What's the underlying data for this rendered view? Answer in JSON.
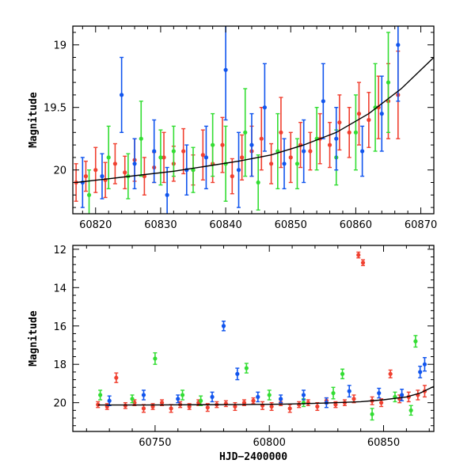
{
  "chart_data": [
    {
      "type": "scatter",
      "title": "",
      "xlabel": "",
      "ylabel": "Magnitude",
      "xlim": [
        60816.5,
        60872
      ],
      "ylim": [
        20.35,
        18.85
      ],
      "y_inverted": true,
      "xticks": [
        60820,
        60830,
        60840,
        60850,
        60860,
        60870
      ],
      "yticks": [
        19,
        19.5,
        20
      ],
      "grid": false,
      "legend": "none",
      "colors": {
        "red": "#f04030",
        "green": "#33dd33",
        "blue": "#1155ee",
        "fit": "#000000"
      },
      "series": [
        {
          "color": "red",
          "x": [
            60817,
            60818.5,
            60820,
            60821.5,
            60823,
            60824.5,
            60826,
            60827.5,
            60829,
            60830.5,
            60832,
            60833.5,
            60835,
            60836.5,
            60838,
            60839.5,
            60841,
            60842.5,
            60844,
            60845.5,
            60847,
            60848.5,
            60850,
            60851.5,
            60853,
            60854.5,
            60856,
            60857.5,
            60859,
            60860.5,
            60862,
            60863.5,
            60865,
            60866.5
          ],
          "y": [
            20.1,
            20.05,
            20.0,
            20.08,
            19.95,
            20.02,
            19.92,
            20.05,
            19.98,
            19.9,
            19.95,
            19.85,
            20.0,
            19.88,
            19.95,
            19.8,
            20.05,
            19.9,
            19.85,
            19.75,
            19.95,
            19.7,
            19.9,
            19.8,
            19.85,
            19.75,
            19.8,
            19.62,
            19.7,
            19.55,
            19.6,
            19.5,
            19.45,
            19.4
          ],
          "yerr": [
            0.15,
            0.12,
            0.18,
            0.14,
            0.16,
            0.13,
            0.17,
            0.15,
            0.12,
            0.2,
            0.14,
            0.18,
            0.12,
            0.2,
            0.15,
            0.22,
            0.14,
            0.18,
            0.2,
            0.25,
            0.16,
            0.28,
            0.2,
            0.18,
            0.15,
            0.2,
            0.18,
            0.22,
            0.2,
            0.25,
            0.22,
            0.25,
            0.3,
            0.35
          ]
        },
        {
          "color": "green",
          "x": [
            60819,
            60822,
            60825,
            60827,
            60830,
            60832,
            60835,
            60838,
            60840,
            60843,
            60845,
            60848,
            60851,
            60854,
            60857,
            60860,
            60863,
            60865
          ],
          "y": [
            20.2,
            19.9,
            20.05,
            19.75,
            19.9,
            19.85,
            20.0,
            19.8,
            19.95,
            19.7,
            20.1,
            19.85,
            19.95,
            19.75,
            19.9,
            19.7,
            19.5,
            19.3
          ],
          "yerr": [
            0.2,
            0.25,
            0.18,
            0.3,
            0.22,
            0.2,
            0.18,
            0.25,
            0.3,
            0.35,
            0.22,
            0.3,
            0.2,
            0.25,
            0.22,
            0.3,
            0.35,
            0.4
          ]
        },
        {
          "color": "blue",
          "x": [
            60818,
            60821,
            60824,
            60826,
            60829,
            60831,
            60834,
            60837,
            60840,
            60842,
            60844,
            60846,
            60849,
            60852,
            60855,
            60857,
            60861,
            60864,
            60866.5
          ],
          "y": [
            20.1,
            20.05,
            19.4,
            19.95,
            19.85,
            20.2,
            20.0,
            19.9,
            19.2,
            20.0,
            19.8,
            19.5,
            19.95,
            19.85,
            19.45,
            19.75,
            19.85,
            19.55,
            19.0
          ],
          "yerr": [
            0.2,
            0.18,
            0.3,
            0.2,
            0.25,
            0.22,
            0.2,
            0.25,
            0.4,
            0.3,
            0.25,
            0.35,
            0.2,
            0.25,
            0.3,
            0.25,
            0.2,
            0.3,
            0.45
          ]
        }
      ],
      "fit_curve": {
        "x": [
          60817,
          60822,
          60827,
          60832,
          60837,
          60842,
          60847,
          60852,
          60857,
          60862,
          60867,
          60872
        ],
        "y": [
          20.1,
          20.07,
          20.04,
          20.01,
          19.97,
          19.93,
          19.88,
          19.8,
          19.7,
          19.55,
          19.35,
          19.1
        ]
      }
    },
    {
      "type": "scatter",
      "title": "",
      "xlabel": "HJD−2400000",
      "ylabel": "Magnitude",
      "xlim": [
        60714,
        60872
      ],
      "ylim": [
        21.5,
        11.8
      ],
      "y_inverted": true,
      "xticks": [
        60750,
        60800,
        60850
      ],
      "yticks": [
        12,
        14,
        16,
        18,
        20
      ],
      "grid": false,
      "legend": "none",
      "colors": {
        "red": "#f04030",
        "green": "#33dd33",
        "blue": "#1155ee",
        "fit": "#000000"
      },
      "series": [
        {
          "color": "red",
          "x": [
            60725,
            60729,
            60733,
            60737,
            60741,
            60745,
            60749,
            60753,
            60757,
            60761,
            60765,
            60769,
            60773,
            60777,
            60781,
            60785,
            60789,
            60793,
            60797,
            60801,
            60805,
            60809,
            60813,
            60817,
            60821,
            60825,
            60829,
            60833,
            60837,
            60839,
            60841,
            60845,
            60849,
            60853,
            60857,
            60861,
            60865,
            60868
          ],
          "y": [
            20.1,
            20.2,
            18.7,
            20.15,
            20.0,
            20.3,
            20.2,
            20.0,
            20.3,
            20.1,
            20.2,
            20.0,
            20.25,
            20.1,
            20.05,
            20.2,
            20.0,
            19.9,
            20.15,
            20.2,
            20.0,
            20.3,
            20.1,
            20.0,
            20.2,
            19.9,
            20.1,
            20.0,
            19.8,
            12.3,
            12.7,
            19.9,
            20.0,
            18.5,
            19.8,
            19.7,
            19.6,
            19.4
          ],
          "yerr": [
            0.15,
            0.15,
            0.25,
            0.15,
            0.15,
            0.2,
            0.15,
            0.15,
            0.2,
            0.15,
            0.15,
            0.15,
            0.2,
            0.15,
            0.15,
            0.2,
            0.15,
            0.15,
            0.2,
            0.2,
            0.15,
            0.2,
            0.15,
            0.15,
            0.2,
            0.15,
            0.15,
            0.15,
            0.2,
            0.15,
            0.15,
            0.2,
            0.2,
            0.2,
            0.2,
            0.25,
            0.25,
            0.3
          ]
        },
        {
          "color": "green",
          "x": [
            60726,
            60740,
            60750,
            60762,
            60770,
            60790,
            60800,
            60815,
            60828,
            60832,
            60845,
            60855,
            60862,
            60864
          ],
          "y": [
            19.6,
            19.8,
            17.7,
            19.6,
            19.9,
            18.2,
            19.6,
            20.0,
            19.5,
            18.5,
            20.6,
            19.7,
            20.4,
            16.8
          ],
          "yerr": [
            0.25,
            0.2,
            0.3,
            0.25,
            0.25,
            0.25,
            0.25,
            0.2,
            0.3,
            0.25,
            0.3,
            0.25,
            0.25,
            0.3
          ]
        },
        {
          "color": "blue",
          "x": [
            60730,
            60745,
            60760,
            60775,
            60780,
            60786,
            60795,
            60805,
            60815,
            60825,
            60835,
            60848,
            60858,
            60866,
            60868
          ],
          "y": [
            19.9,
            19.6,
            19.8,
            19.7,
            16.0,
            18.5,
            19.7,
            19.8,
            19.6,
            20.0,
            19.4,
            19.5,
            19.6,
            18.4,
            18.0
          ],
          "yerr": [
            0.25,
            0.25,
            0.2,
            0.25,
            0.25,
            0.3,
            0.25,
            0.2,
            0.25,
            0.25,
            0.3,
            0.25,
            0.3,
            0.3,
            0.35
          ]
        }
      ],
      "fit_curve": {
        "x": [
          60725,
          60745,
          60765,
          60785,
          60805,
          60825,
          60840,
          60850,
          60860,
          60866,
          60872
        ],
        "y": [
          20.12,
          20.12,
          20.11,
          20.1,
          20.08,
          20.02,
          19.95,
          19.85,
          19.7,
          19.5,
          19.15
        ]
      }
    }
  ]
}
